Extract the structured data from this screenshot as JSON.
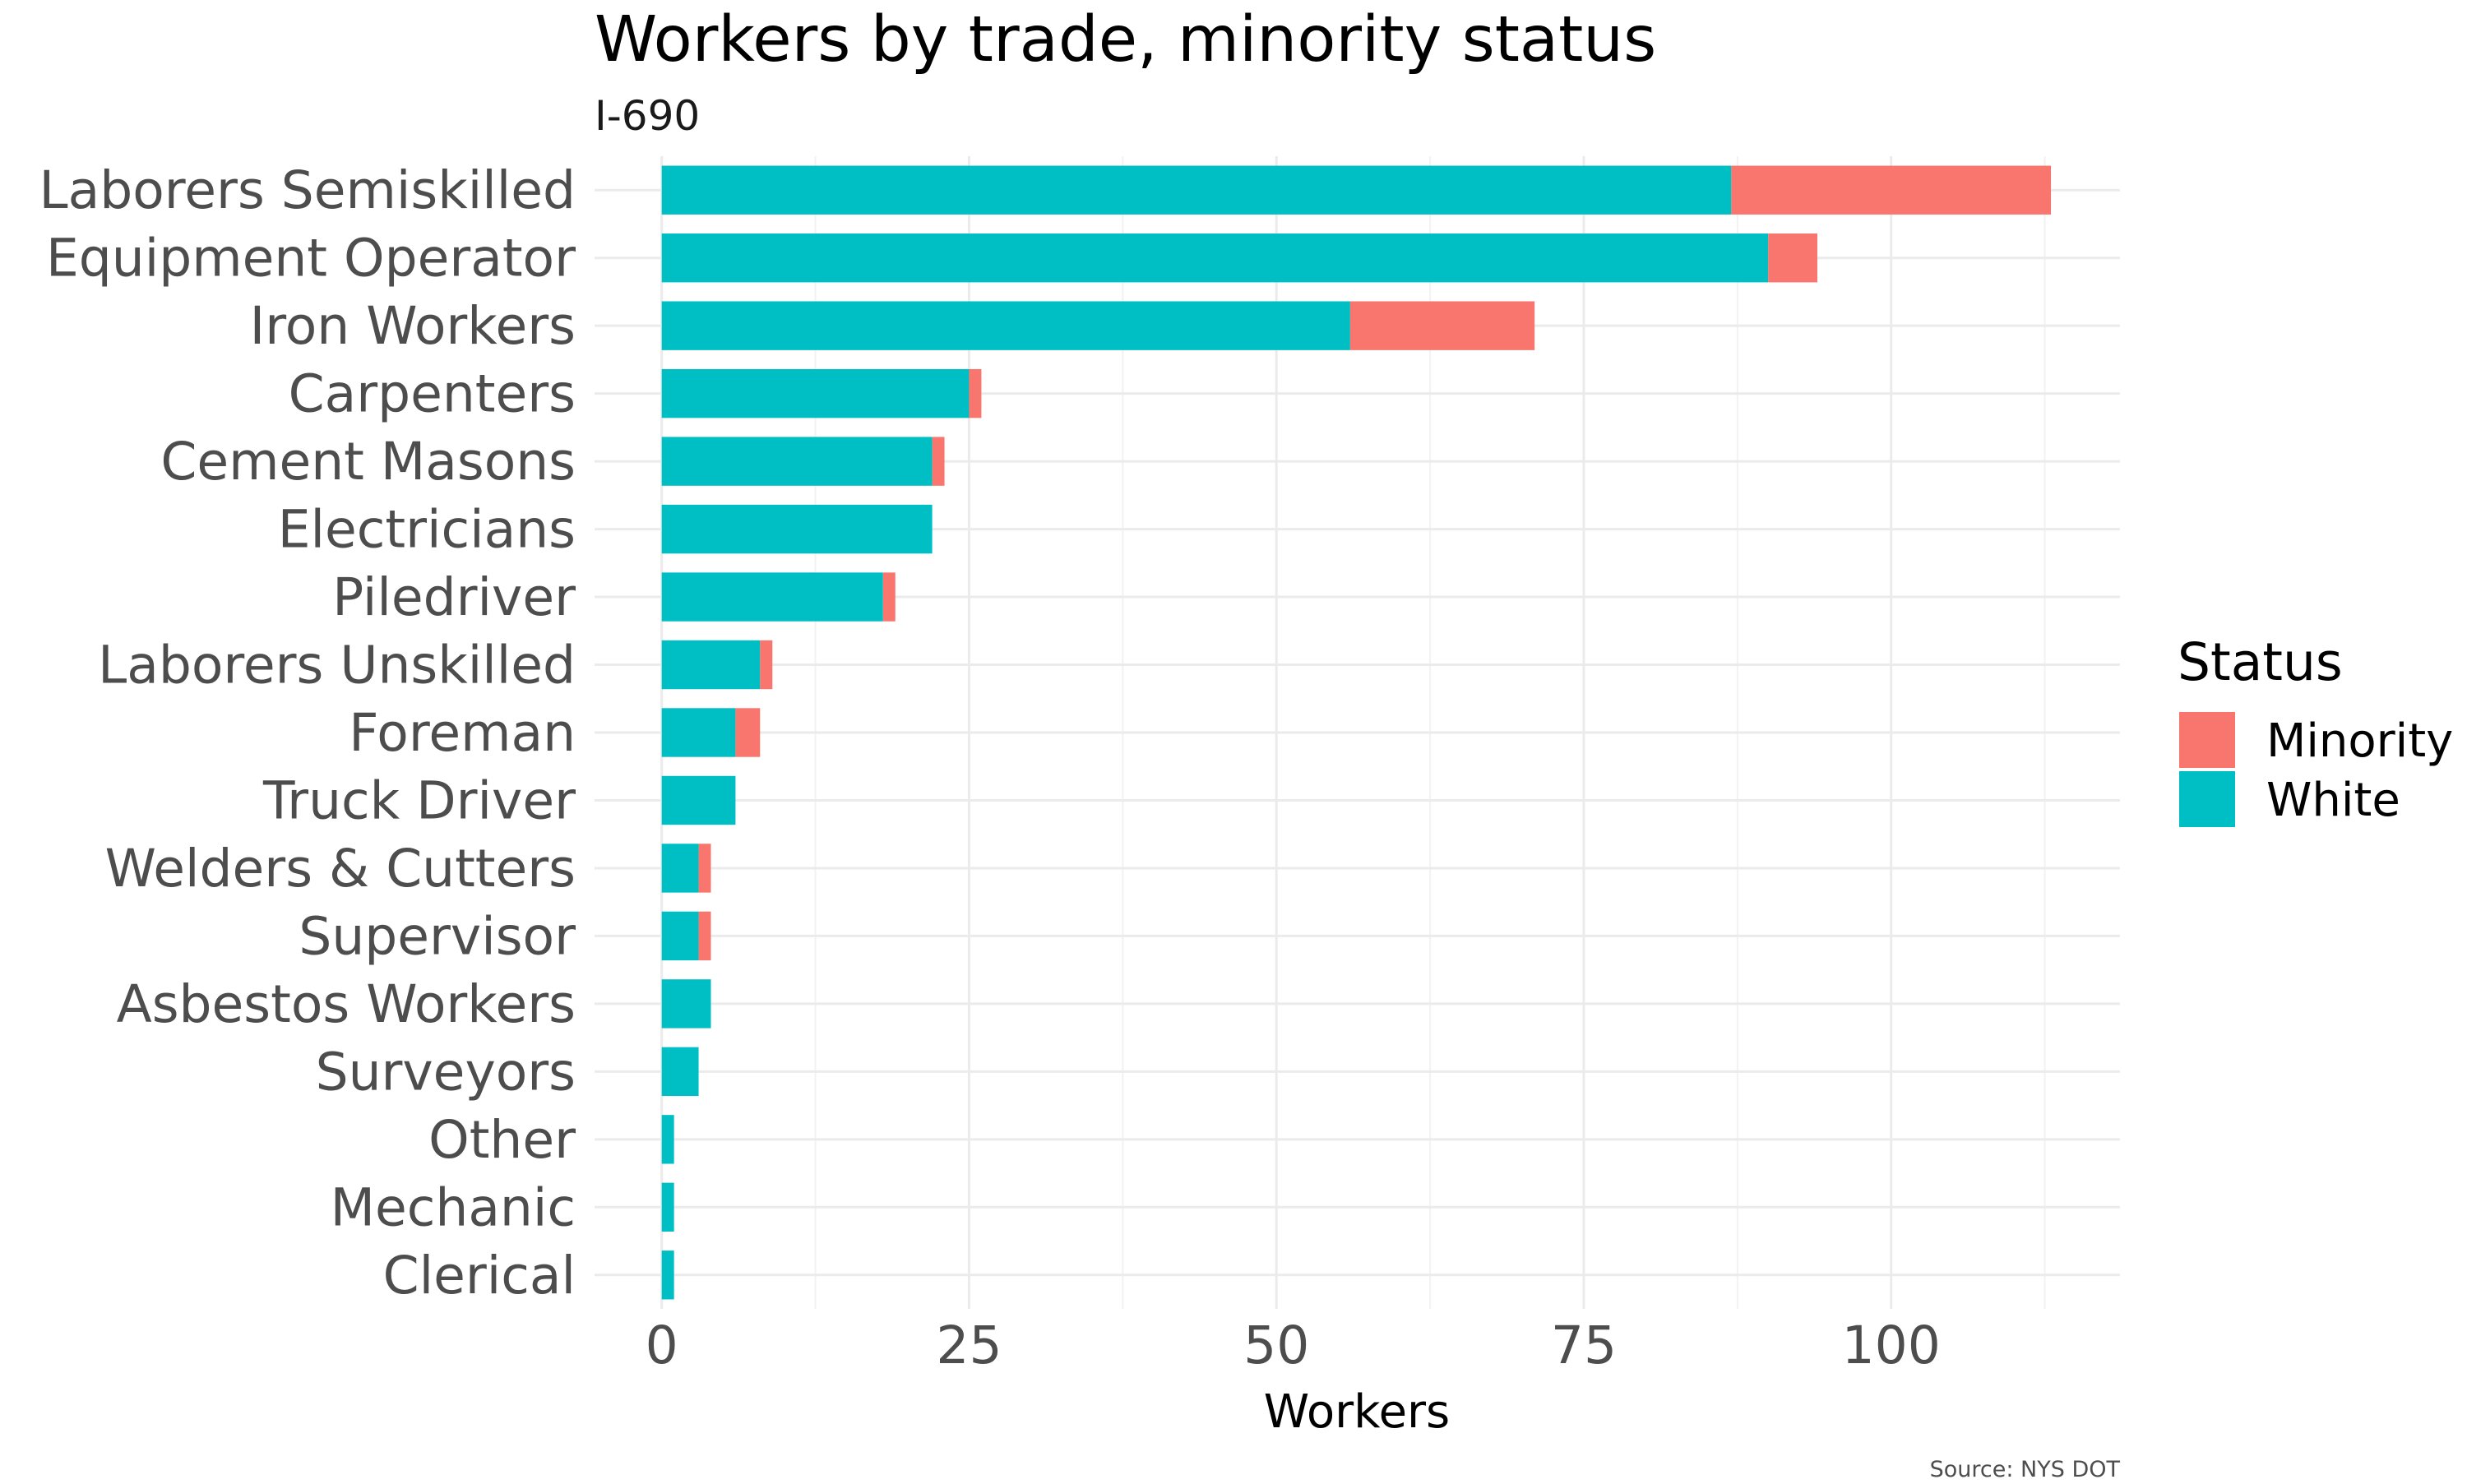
{
  "chart_data": {
    "type": "bar",
    "orientation": "horizontal",
    "stacked": true,
    "title": "Workers by trade, minority status",
    "subtitle": "I-690",
    "xlabel": "Workers",
    "ylabel": "",
    "caption": "Source: NYS DOT",
    "xlim": [
      0,
      118
    ],
    "xticks": [
      0,
      25,
      50,
      75,
      100
    ],
    "xtick_labels": [
      "0",
      "25",
      "50",
      "75",
      "100"
    ],
    "grid": true,
    "legend": {
      "title": "Status",
      "position": "right",
      "entries": [
        {
          "label": "Minority",
          "color": "#F8766D"
        },
        {
          "label": "White",
          "color": "#00BFC4"
        }
      ]
    },
    "categories": [
      "Laborers Semiskilled",
      "Equipment Operator",
      "Iron Workers",
      "Carpenters",
      "Cement Masons",
      "Electricians",
      "Piledriver",
      "Laborers Unskilled",
      "Foreman",
      "Truck Driver",
      "Welders & Cutters",
      "Supervisor",
      "Asbestos Workers",
      "Surveyors",
      "Other",
      "Mechanic",
      "Clerical"
    ],
    "series": [
      {
        "name": "White",
        "color": "#00BFC4",
        "values": [
          87,
          90,
          56,
          25,
          22,
          22,
          18,
          8,
          6,
          6,
          3,
          3,
          4,
          3,
          1,
          1,
          1
        ]
      },
      {
        "name": "Minority",
        "color": "#F8766D",
        "values": [
          26,
          4,
          15,
          1,
          1,
          0,
          1,
          1,
          2,
          0,
          1,
          1,
          0,
          0,
          0,
          0,
          0
        ]
      }
    ]
  }
}
